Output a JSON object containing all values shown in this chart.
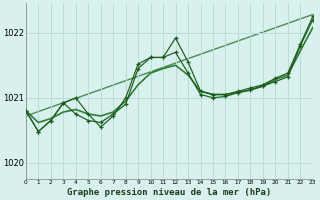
{
  "bg_color": "#d8f0ee",
  "grid_color": "#b8dcd8",
  "line_dark": "#1a5c1a",
  "line_medium": "#2e7d32",
  "xlabel": "Graphe pression niveau de la mer (hPa)",
  "xlim": [
    0,
    23
  ],
  "ylim": [
    1019.75,
    1022.45
  ],
  "yticks": [
    1020,
    1021,
    1022
  ],
  "xticks": [
    0,
    1,
    2,
    3,
    4,
    5,
    6,
    7,
    8,
    9,
    10,
    11,
    12,
    13,
    14,
    15,
    16,
    17,
    18,
    19,
    20,
    21,
    22,
    23
  ],
  "trend_x": [
    0,
    23
  ],
  "trend_y": [
    1020.72,
    1022.28
  ],
  "jagged1_x": [
    0,
    1,
    2,
    3,
    4,
    5,
    6,
    7,
    8,
    9,
    10,
    11,
    12,
    13,
    14,
    15,
    16,
    17,
    18,
    19,
    20,
    21,
    22,
    23
  ],
  "jagged1_y": [
    1020.8,
    1020.48,
    1020.65,
    1020.92,
    1020.75,
    1020.65,
    1020.62,
    1020.75,
    1020.9,
    1021.45,
    1021.62,
    1021.62,
    1021.92,
    1021.55,
    1021.1,
    1021.05,
    1021.05,
    1021.1,
    1021.15,
    1021.2,
    1021.3,
    1021.38,
    1021.82,
    1022.25
  ],
  "jagged2_x": [
    0,
    1,
    2,
    3,
    4,
    5,
    6,
    7,
    8,
    9,
    10,
    11,
    12,
    13,
    14,
    15,
    16,
    17,
    18,
    19,
    20,
    21,
    22,
    23
  ],
  "jagged2_y": [
    1020.8,
    1020.48,
    1020.65,
    1020.92,
    1021.0,
    1020.75,
    1020.55,
    1020.72,
    1021.0,
    1021.52,
    1021.62,
    1021.62,
    1021.7,
    1021.38,
    1021.05,
    1021.0,
    1021.02,
    1021.08,
    1021.12,
    1021.18,
    1021.25,
    1021.32,
    1021.8,
    1022.2
  ],
  "smooth_x": [
    0,
    1,
    2,
    3,
    4,
    5,
    6,
    7,
    8,
    9,
    10,
    11,
    12,
    13,
    14,
    15,
    16,
    17,
    18,
    19,
    20,
    21,
    22,
    23
  ],
  "smooth_y": [
    1020.8,
    1020.62,
    1020.68,
    1020.78,
    1020.82,
    1020.75,
    1020.72,
    1020.78,
    1020.95,
    1021.2,
    1021.38,
    1021.45,
    1021.5,
    1021.35,
    1021.1,
    1021.05,
    1021.05,
    1021.08,
    1021.12,
    1021.18,
    1021.28,
    1021.35,
    1021.72,
    1022.08
  ]
}
